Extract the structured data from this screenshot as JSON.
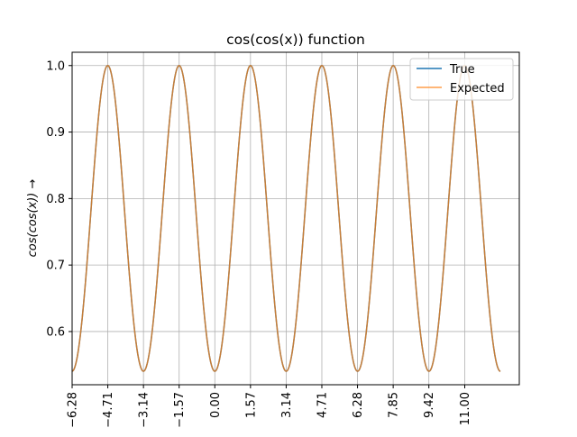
{
  "chart_data": {
    "type": "line",
    "title": "cos(cos(x)) function",
    "xlabel": "",
    "ylabel": "cos(cos(x)) →",
    "xlim": [
      -6.28,
      13.4
    ],
    "ylim": [
      0.52,
      1.02
    ],
    "grid": true,
    "legend_position": "top-right",
    "x_ticks": [
      -6.28,
      -4.71,
      -3.14,
      -1.57,
      0.0,
      1.57,
      3.14,
      4.71,
      6.28,
      7.85,
      9.42,
      11.0
    ],
    "x_tick_labels": [
      "−6.28",
      "−4.71",
      "−3.14",
      "−1.57",
      "0.00",
      "1.57",
      "3.14",
      "4.71",
      "6.28",
      "7.85",
      "9.42",
      "11.00"
    ],
    "y_ticks": [
      0.6,
      0.7,
      0.8,
      0.9,
      1.0
    ],
    "y_tick_labels": [
      "0.6",
      "0.7",
      "0.8",
      "0.9",
      "1.0"
    ],
    "function": "cos(cos(x))",
    "x_range": [
      -6.28,
      12.57
    ],
    "series": [
      {
        "name": "True",
        "color": "#1f77b4",
        "linewidth": 1.5
      },
      {
        "name": "Expected",
        "color": "#ff7f0e",
        "linewidth": 1.5,
        "opacity": 0.75
      }
    ]
  }
}
